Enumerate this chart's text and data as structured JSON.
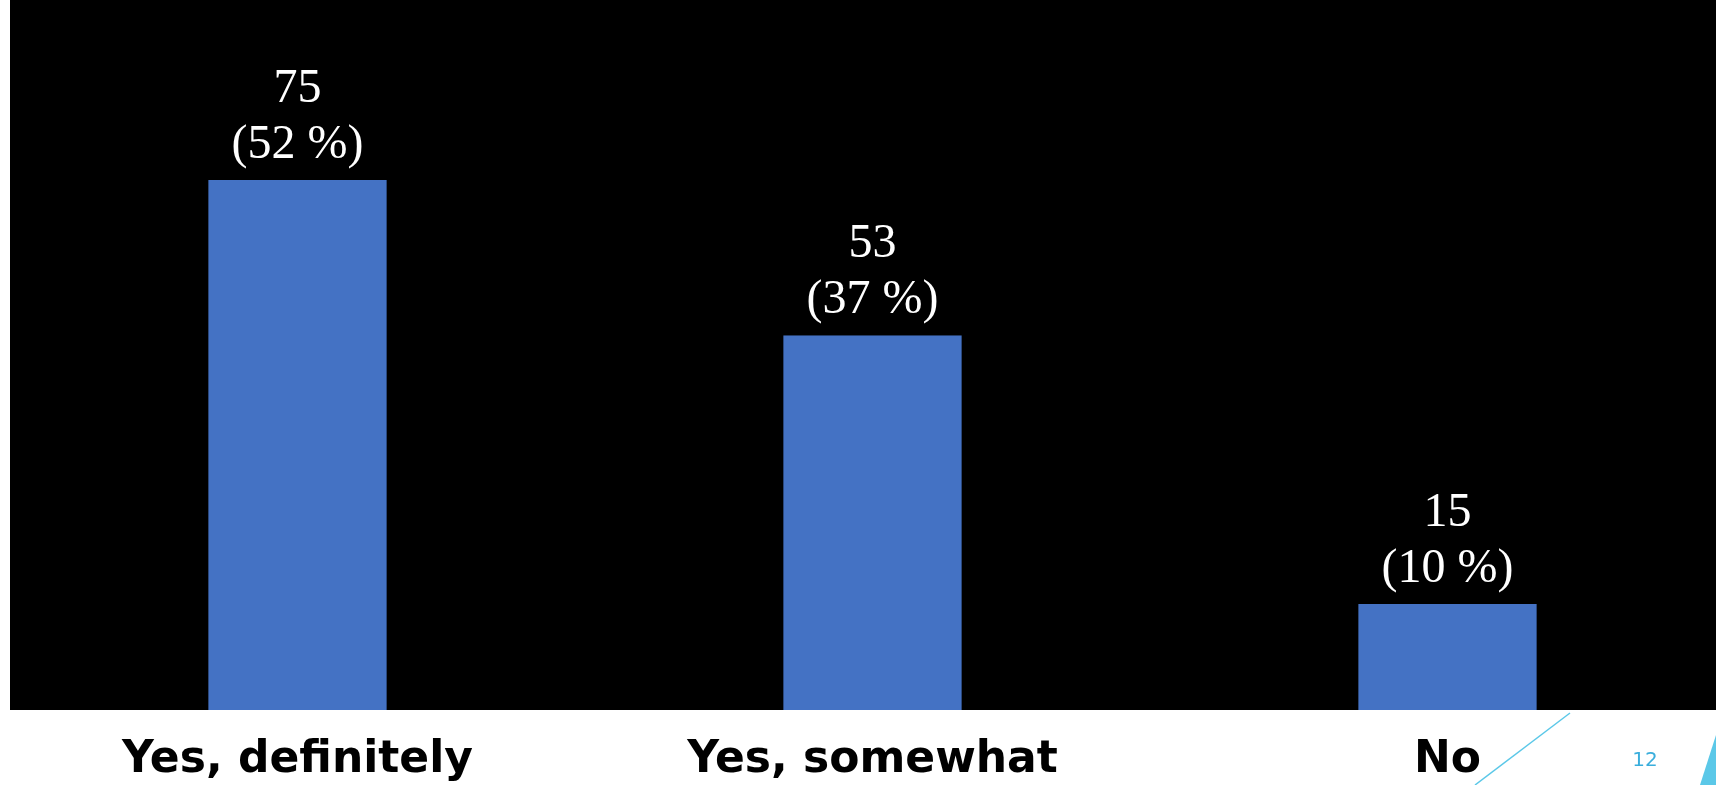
{
  "chart_data": {
    "type": "bar",
    "categories": [
      "Yes, definitely",
      "Yes, somewhat",
      "No"
    ],
    "values": [
      75,
      53,
      15
    ],
    "color": "#4472c4",
    "value_labels": [
      "75\n(52 %)",
      "53\n(37 %)",
      "15\n(10 %)"
    ],
    "annotations": [
      "12"
    ]
  }
}
